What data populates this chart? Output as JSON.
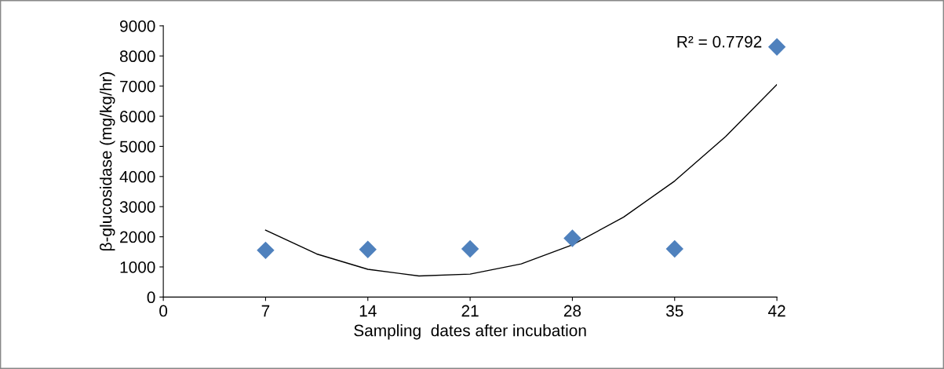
{
  "chart_data": {
    "type": "scatter",
    "xlabel": "Sampling  dates after incubation",
    "ylabel": "β-glucosidase (mg/kg/hr)",
    "annotations": [
      "R² = 0.7792"
    ],
    "xlim": [
      0,
      42
    ],
    "xticks": [
      0,
      7,
      14,
      21,
      28,
      35,
      42
    ],
    "ylim": [
      0,
      9000
    ],
    "yticks": [
      0,
      1000,
      2000,
      3000,
      4000,
      5000,
      6000,
      7000,
      8000,
      9000
    ],
    "grid": false,
    "legend": false,
    "series": [
      {
        "color": "#4f81bd",
        "marker": "diamond",
        "x": [
          7,
          14,
          21,
          28,
          35,
          42
        ],
        "values": [
          1550,
          1580,
          1600,
          1950,
          1600,
          8300
        ]
      },
      {
        "type": "line",
        "color": "#000000",
        "marker": "none",
        "line_style": "solid",
        "x": [
          7,
          10.5,
          14,
          17.5,
          21,
          24.5,
          28,
          31.5,
          35,
          38.5,
          42
        ],
        "values": [
          2220,
          1430,
          920,
          700,
          760,
          1100,
          1730,
          2650,
          3850,
          5330,
          7050
        ]
      }
    ]
  }
}
